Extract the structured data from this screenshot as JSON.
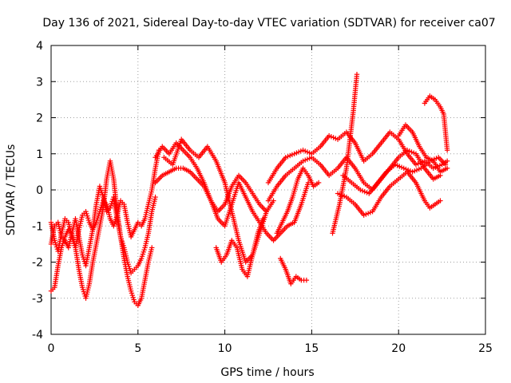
{
  "chart_data": {
    "type": "scatter",
    "title": "Day 136 of 2021, Sidereal Day-to-day VTEC variation (SDTVAR) for receiver ca07",
    "xlabel": "GPS time / hours",
    "ylabel": "SDTVAR / TECUs",
    "xlim": [
      0,
      25
    ],
    "ylim": [
      -4,
      4
    ],
    "x_ticks": [
      0,
      5,
      10,
      15,
      20,
      25
    ],
    "y_ticks": [
      -4,
      -3,
      -2,
      -1,
      0,
      1,
      2,
      3,
      4
    ],
    "grid": true,
    "marker": "+",
    "series_color": "#ff0000",
    "series": [
      {
        "name": "trace-1",
        "x": [
          0.0,
          0.2,
          0.4,
          0.6,
          0.8,
          1.0,
          1.2,
          1.4,
          1.6,
          1.8,
          2.0,
          2.2,
          2.4,
          2.6,
          2.8,
          3.0,
          3.2,
          3.4,
          3.6,
          3.8,
          4.0,
          4.2,
          4.4,
          4.6,
          4.8,
          5.0,
          5.2,
          5.4,
          5.6,
          5.8,
          6.0
        ],
        "y": [
          -1.5,
          -1.0,
          -0.9,
          -1.3,
          -1.4,
          -1.6,
          -1.2,
          -0.8,
          -1.3,
          -1.8,
          -2.1,
          -1.6,
          -1.1,
          -0.4,
          0.1,
          -0.2,
          -0.6,
          -0.5,
          -0.2,
          -0.8,
          -1.3,
          -1.6,
          -2.0,
          -2.3,
          -2.2,
          -2.1,
          -1.9,
          -1.6,
          -1.2,
          -0.6,
          -0.2
        ]
      },
      {
        "name": "trace-2",
        "x": [
          0.0,
          0.2,
          0.4,
          0.6,
          0.8,
          1.0,
          1.2,
          1.4,
          1.6,
          1.8,
          2.0,
          2.2,
          2.4,
          2.6,
          2.8,
          3.0,
          3.2,
          3.4,
          3.6,
          3.8,
          4.0,
          4.2,
          4.4,
          4.6,
          4.8,
          5.0,
          5.2,
          5.4,
          5.6,
          5.8,
          6.0,
          6.2
        ],
        "y": [
          -0.9,
          -1.4,
          -1.7,
          -1.2,
          -0.8,
          -0.9,
          -1.3,
          -1.6,
          -1.1,
          -0.7,
          -0.6,
          -0.9,
          -1.1,
          -0.9,
          -0.6,
          -0.3,
          -0.4,
          -0.8,
          -1.0,
          -0.7,
          -0.3,
          -0.4,
          -0.9,
          -1.3,
          -1.1,
          -0.9,
          -1.0,
          -0.8,
          -0.4,
          0.0,
          0.6,
          1.1
        ]
      },
      {
        "name": "trace-3",
        "x": [
          0.0,
          0.2,
          0.4,
          0.6,
          0.8,
          1.0,
          1.2,
          1.4,
          1.6,
          1.8,
          2.0,
          2.2,
          2.4,
          2.6,
          2.8,
          3.0,
          3.2,
          3.4,
          3.6,
          3.8,
          4.0,
          4.2,
          4.4,
          4.6,
          4.8,
          5.0,
          5.2,
          5.4,
          5.6,
          5.8
        ],
        "y": [
          -2.8,
          -2.7,
          -2.1,
          -1.6,
          -1.3,
          -1.1,
          -1.2,
          -1.6,
          -2.2,
          -2.7,
          -3.0,
          -2.6,
          -2.0,
          -1.5,
          -1.0,
          -0.5,
          0.3,
          0.8,
          0.3,
          -0.6,
          -1.3,
          -1.9,
          -2.4,
          -2.8,
          -3.1,
          -3.2,
          -3.0,
          -2.5,
          -2.0,
          -1.6
        ]
      },
      {
        "name": "trace-4",
        "x": [
          6.0,
          6.4,
          6.8,
          7.2,
          7.6,
          8.0,
          8.4,
          8.8,
          9.2,
          9.6,
          10.0,
          10.4,
          10.8,
          11.2,
          11.6,
          12.0,
          12.4,
          12.8,
          13.2,
          13.6,
          14.0,
          14.4,
          14.8
        ],
        "y": [
          0.9,
          1.2,
          1.0,
          1.3,
          1.1,
          0.9,
          0.6,
          0.2,
          -0.3,
          -0.8,
          -1.0,
          -0.4,
          0.2,
          -0.2,
          -0.6,
          -0.9,
          -1.2,
          -1.4,
          -1.2,
          -1.0,
          -0.9,
          -0.4,
          0.2
        ]
      },
      {
        "name": "trace-5",
        "x": [
          6.0,
          6.4,
          6.8,
          7.2,
          7.6,
          8.0,
          8.4,
          8.8,
          9.2,
          9.6,
          10.0,
          10.4,
          10.8,
          11.2,
          11.6,
          12.0,
          12.4,
          12.8
        ],
        "y": [
          0.2,
          0.4,
          0.5,
          0.6,
          0.6,
          0.5,
          0.3,
          0.1,
          -0.3,
          -0.6,
          -0.4,
          0.1,
          0.4,
          0.2,
          -0.1,
          -0.4,
          -0.6,
          -0.3
        ]
      },
      {
        "name": "trace-6",
        "x": [
          6.5,
          7.0,
          7.5,
          8.0,
          8.5,
          9.0,
          9.5,
          10.0,
          10.4,
          10.8,
          11.2,
          11.6,
          12.0,
          12.4
        ],
        "y": [
          0.9,
          0.7,
          1.4,
          1.1,
          0.9,
          1.2,
          0.8,
          0.2,
          -0.6,
          -1.4,
          -2.0,
          -1.8,
          -1.2,
          -0.6
        ]
      },
      {
        "name": "trace-7",
        "x": [
          9.5,
          9.8,
          10.1,
          10.4,
          10.7,
          11.0,
          11.3,
          11.6,
          11.9,
          12.2
        ],
        "y": [
          -1.6,
          -2.0,
          -1.8,
          -1.4,
          -1.6,
          -2.2,
          -2.4,
          -1.8,
          -1.2,
          -0.8
        ]
      },
      {
        "name": "trace-8",
        "x": [
          12.5,
          13.0,
          13.5,
          14.0,
          14.5,
          15.0,
          15.5,
          16.0,
          16.5,
          17.0,
          17.5,
          18.0,
          18.5,
          19.0,
          19.5,
          20.0,
          20.5,
          21.0,
          21.5,
          22.0,
          22.5,
          22.8
        ],
        "y": [
          0.2,
          0.6,
          0.9,
          1.0,
          1.1,
          1.0,
          1.2,
          1.5,
          1.4,
          1.6,
          1.3,
          0.8,
          1.0,
          1.3,
          1.6,
          1.4,
          1.0,
          0.7,
          0.8,
          0.6,
          0.7,
          0.8
        ]
      },
      {
        "name": "trace-9",
        "x": [
          12.5,
          13.0,
          13.5,
          14.0,
          14.5,
          15.0,
          15.5,
          16.0,
          16.5,
          17.0,
          17.5,
          18.0,
          18.5,
          19.0,
          19.5,
          20.0,
          20.5,
          21.0,
          21.5,
          22.0,
          22.4
        ],
        "y": [
          -0.3,
          0.1,
          0.4,
          0.6,
          0.8,
          0.9,
          0.7,
          0.4,
          0.6,
          0.9,
          0.6,
          0.2,
          0.0,
          0.3,
          0.6,
          0.9,
          1.1,
          1.0,
          0.6,
          0.3,
          0.4
        ]
      },
      {
        "name": "trace-10",
        "x": [
          13.2,
          13.5,
          13.8,
          14.1,
          14.4,
          14.7
        ],
        "y": [
          -1.9,
          -2.2,
          -2.6,
          -2.4,
          -2.5,
          -2.5
        ]
      },
      {
        "name": "trace-11",
        "x": [
          13.0,
          13.3,
          13.6,
          13.9,
          14.2,
          14.5,
          14.8,
          15.1,
          15.4
        ],
        "y": [
          -1.2,
          -0.9,
          -0.6,
          -0.2,
          0.3,
          0.6,
          0.4,
          0.1,
          0.2
        ]
      },
      {
        "name": "trace-12",
        "x": [
          16.2,
          16.6,
          17.0,
          17.4,
          17.6
        ],
        "y": [
          -1.2,
          -0.4,
          0.6,
          2.2,
          3.2
        ]
      },
      {
        "name": "trace-13",
        "x": [
          16.5,
          17.0,
          17.5,
          18.0,
          18.5,
          19.0,
          19.5,
          20.0,
          20.5,
          21.0,
          21.5,
          21.8,
          22.1,
          22.4
        ],
        "y": [
          -0.1,
          -0.2,
          -0.4,
          -0.7,
          -0.6,
          -0.2,
          0.1,
          0.3,
          0.5,
          0.2,
          -0.3,
          -0.5,
          -0.4,
          -0.3
        ]
      },
      {
        "name": "trace-14",
        "x": [
          16.8,
          17.3,
          17.8,
          18.3,
          18.8,
          19.3,
          19.8,
          20.3,
          20.8,
          21.3,
          21.8,
          22.3,
          22.7
        ],
        "y": [
          0.4,
          0.2,
          0.0,
          -0.1,
          0.2,
          0.5,
          0.7,
          0.6,
          0.5,
          0.6,
          0.8,
          0.9,
          0.7
        ]
      },
      {
        "name": "trace-15",
        "x": [
          21.5,
          21.8,
          22.1,
          22.4,
          22.6,
          22.7,
          22.8
        ],
        "y": [
          2.4,
          2.6,
          2.5,
          2.3,
          2.1,
          1.6,
          1.1
        ]
      },
      {
        "name": "trace-16",
        "x": [
          20.0,
          20.4,
          20.8,
          21.2,
          21.6,
          22.0,
          22.4,
          22.8
        ],
        "y": [
          1.5,
          1.8,
          1.6,
          1.2,
          0.9,
          0.8,
          0.5,
          0.6
        ]
      }
    ]
  }
}
